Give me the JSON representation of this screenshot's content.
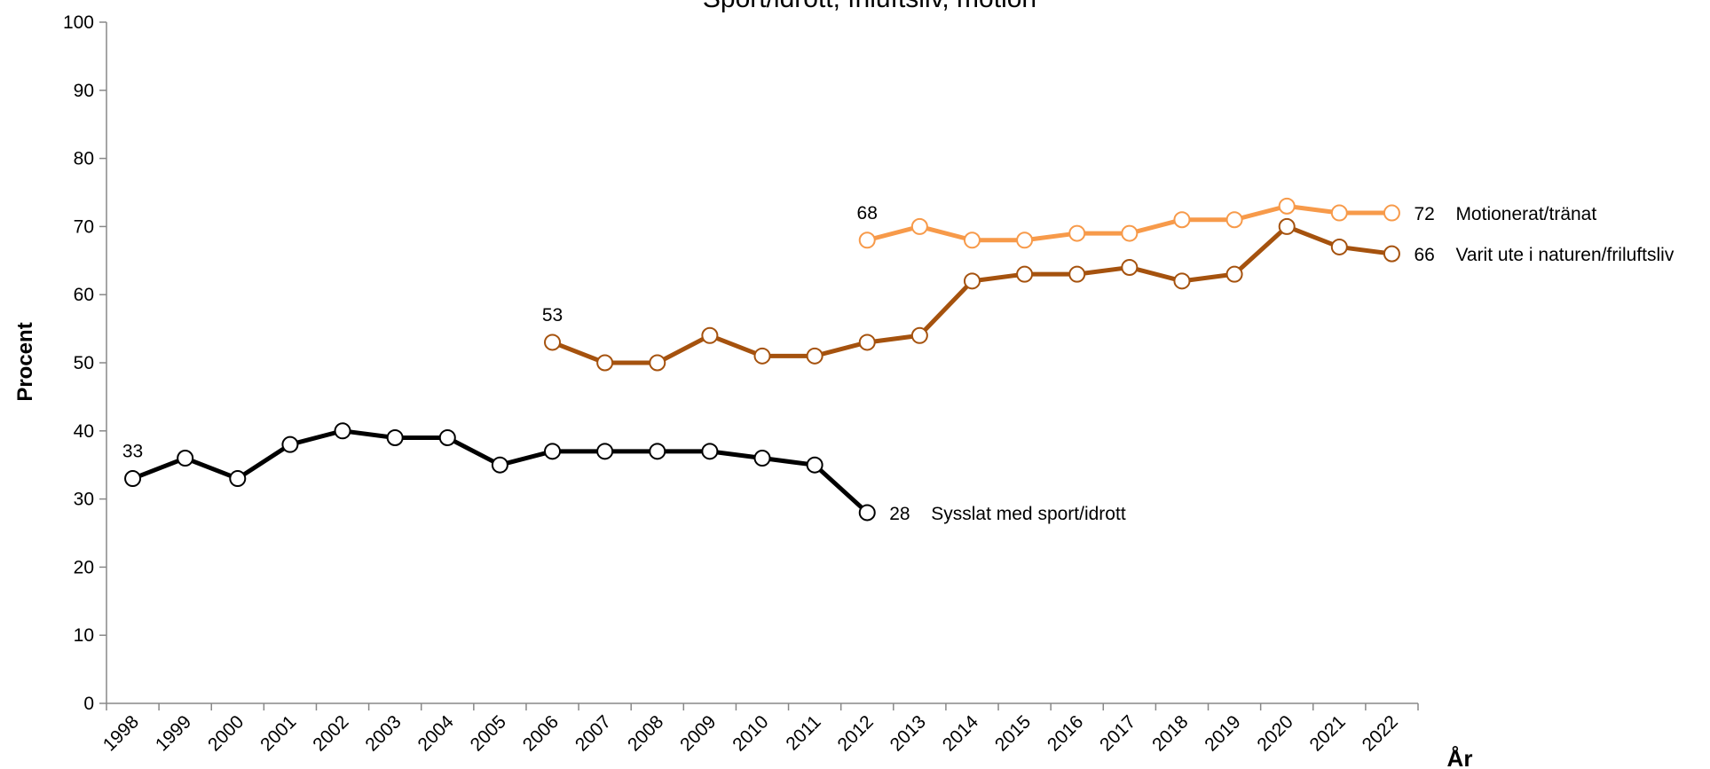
{
  "chart_data": {
    "type": "line",
    "title": "Sport/idrott, friluftsliv, motion",
    "y_label": "Procent",
    "x_label": "År",
    "categories": [
      "1998",
      "1999",
      "2000",
      "2001",
      "2002",
      "2003",
      "2004",
      "2005",
      "2006",
      "2007",
      "2008",
      "2009",
      "2010",
      "2011",
      "2012",
      "2013",
      "2014",
      "2015",
      "2016",
      "2017",
      "2018",
      "2019",
      "2020",
      "2021",
      "2022"
    ],
    "ylim": [
      0,
      100
    ],
    "yticks": [
      0,
      10,
      20,
      30,
      40,
      50,
      60,
      70,
      80,
      90,
      100
    ],
    "series": [
      {
        "name": "Sysslat med sport/idrott",
        "color": "#000000",
        "values": [
          33,
          36,
          33,
          38,
          40,
          39,
          39,
          35,
          37,
          37,
          37,
          37,
          36,
          35,
          28,
          null,
          null,
          null,
          null,
          null,
          null,
          null,
          null,
          null,
          null
        ]
      },
      {
        "name": "Varit ute i naturen/friluftsliv",
        "color": "#a5520e",
        "values": [
          null,
          null,
          null,
          null,
          null,
          null,
          null,
          null,
          53,
          50,
          50,
          54,
          51,
          51,
          53,
          54,
          62,
          63,
          63,
          64,
          62,
          63,
          70,
          67,
          66
        ]
      },
      {
        "name": "Motionerat/tränat",
        "color": "#f79a4a",
        "values": [
          null,
          null,
          null,
          null,
          null,
          null,
          null,
          null,
          null,
          null,
          null,
          null,
          null,
          null,
          68,
          70,
          68,
          68,
          69,
          69,
          71,
          71,
          73,
          72,
          72
        ]
      }
    ]
  }
}
